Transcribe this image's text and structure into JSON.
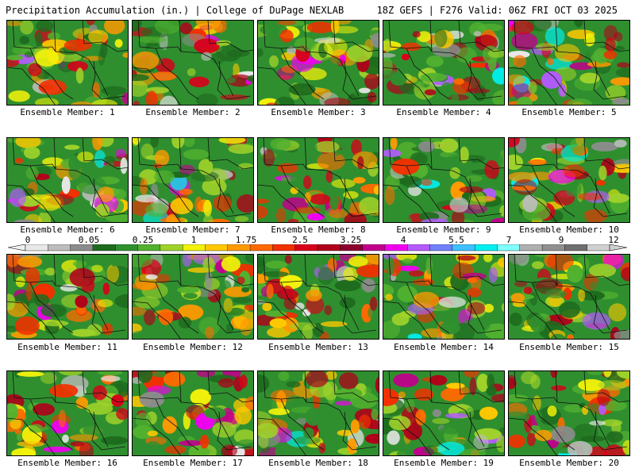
{
  "header": {
    "left": "Precipitation Accumulation (in.) | College of DuPage NEXLAB",
    "right": "18Z GEFS | F276 Valid: 06Z FRI OCT 03 2025"
  },
  "colorbar": {
    "labels": [
      "0",
      "0.05",
      "0.25",
      "1",
      "1.75",
      "2.5",
      "3.25",
      "4",
      "5.5",
      "7",
      "9",
      "12"
    ],
    "colors": [
      "#e8e8e8",
      "#bdbdbd",
      "#8c8c8c",
      "#1e6b1e",
      "#2f8f2f",
      "#52b12f",
      "#9fd22a",
      "#f2f20a",
      "#ffc800",
      "#ff9a00",
      "#ff6a00",
      "#f23000",
      "#d8001a",
      "#b0001a",
      "#8c0030",
      "#c0008c",
      "#f000f0",
      "#b45aff",
      "#7080ff",
      "#40c0ff",
      "#00f0f0",
      "#80ffff",
      "#b0b0b0",
      "#909090",
      "#707070",
      "#d0d0d0"
    ]
  },
  "panels": [
    {
      "label": "Ensemble Member: 1",
      "icons": "us-precip-map"
    },
    {
      "label": "Ensemble Member: 2"
    },
    {
      "label": "Ensemble Member: 3"
    },
    {
      "label": "Ensemble Member: 4"
    },
    {
      "label": "Ensemble Member: 5"
    },
    {
      "label": "Ensemble Member: 6"
    },
    {
      "label": "Ensemble Member: 7"
    },
    {
      "label": "Ensemble Member: 8"
    },
    {
      "label": "Ensemble Member: 9"
    },
    {
      "label": "Ensemble Member: 10"
    },
    {
      "label": "Ensemble Member: 11"
    },
    {
      "label": "Ensemble Member: 12"
    },
    {
      "label": "Ensemble Member: 13"
    },
    {
      "label": "Ensemble Member: 14"
    },
    {
      "label": "Ensemble Member: 15"
    },
    {
      "label": "Ensemble Member: 16"
    },
    {
      "label": "Ensemble Member: 17"
    },
    {
      "label": "Ensemble Member: 18"
    },
    {
      "label": "Ensemble Member: 19"
    },
    {
      "label": "Ensemble Member: 20"
    }
  ]
}
